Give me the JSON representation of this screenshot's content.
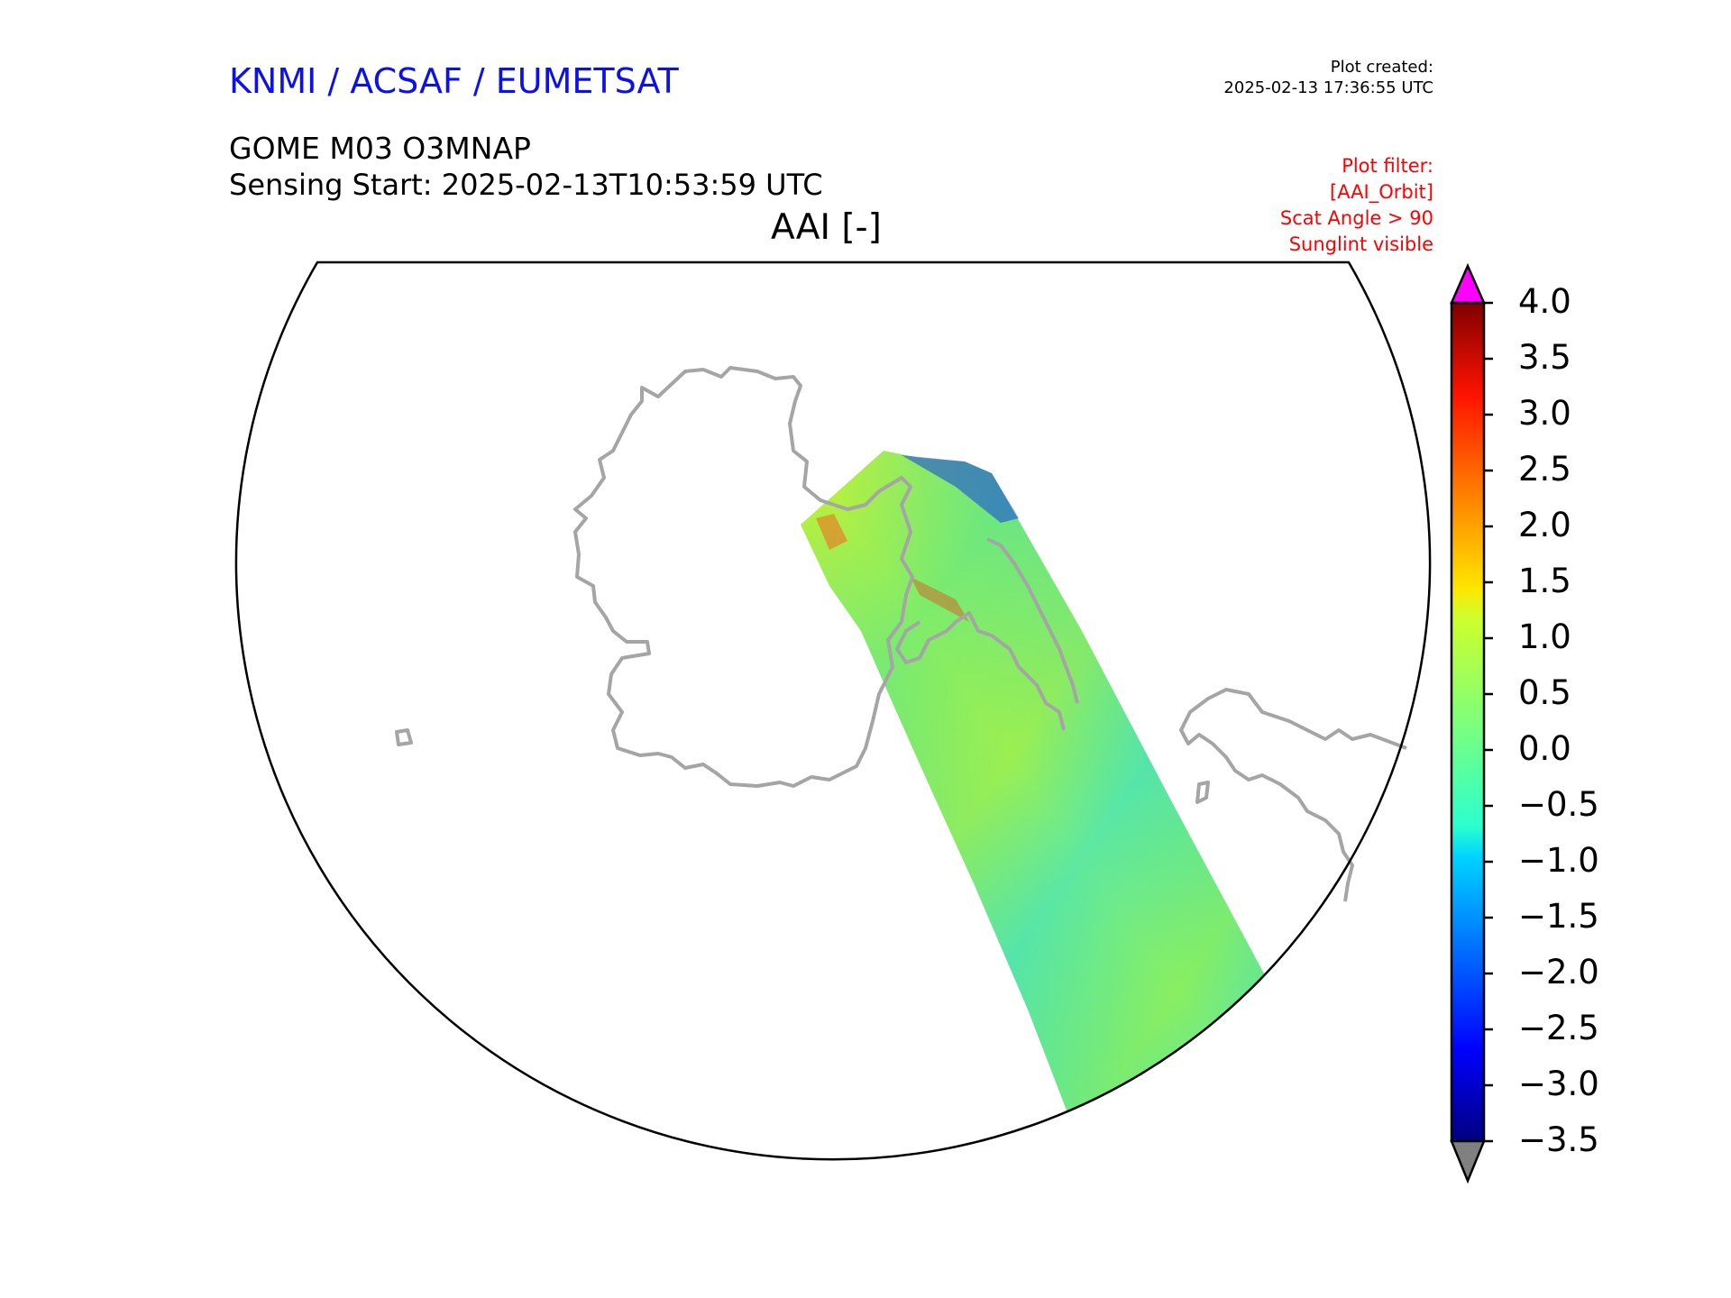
{
  "header": {
    "brand": "KNMI / ACSAF / EUMETSAT",
    "plot_created_label": "Plot created:",
    "plot_created_time": "2025-02-13 17:36:55 UTC",
    "product": "GOME M03 O3MNAP",
    "sensing_start": "Sensing Start: 2025-02-13T10:53:59 UTC",
    "parameter": "AAI [-]",
    "filter_lines": [
      "Plot filter:",
      "[AAI_Orbit]",
      "Scat Angle > 90",
      "Sunglint visible"
    ]
  },
  "colors": {
    "brand": "#0b10f0",
    "filter": "#ff0000",
    "coastline": "#a5a5a5",
    "over": "#ff00ff",
    "under": "#808080"
  },
  "colorbar": {
    "min": -3.5,
    "max": 4.0,
    "ticks": [
      {
        "value": 4.0,
        "label": "4.0"
      },
      {
        "value": 3.5,
        "label": "3.5"
      },
      {
        "value": 3.0,
        "label": "3.0"
      },
      {
        "value": 2.5,
        "label": "2.5"
      },
      {
        "value": 2.0,
        "label": "2.0"
      },
      {
        "value": 1.5,
        "label": "1.5"
      },
      {
        "value": 1.0,
        "label": "1.0"
      },
      {
        "value": 0.5,
        "label": "0.5"
      },
      {
        "value": 0.0,
        "label": "0.0"
      },
      {
        "value": -0.5,
        "label": "−0.5"
      },
      {
        "value": -1.0,
        "label": "−1.0"
      },
      {
        "value": -1.5,
        "label": "−1.5"
      },
      {
        "value": -2.0,
        "label": "−2.0"
      },
      {
        "value": -2.5,
        "label": "−2.5"
      },
      {
        "value": -3.0,
        "label": "−3.0"
      },
      {
        "value": -3.5,
        "label": "−3.5"
      }
    ]
  }
}
